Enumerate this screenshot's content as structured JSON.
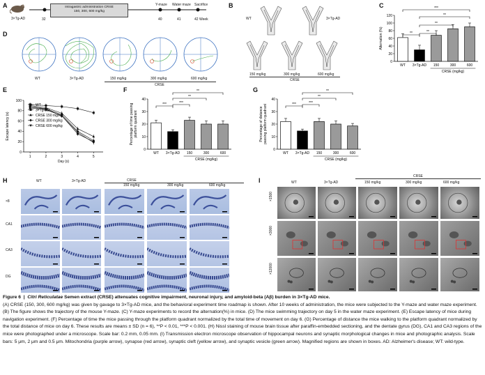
{
  "panelA": {
    "label": "A",
    "mouse": "3×Tg-AD",
    "start_week": "32",
    "box": [
      "Intragastric administration CRSE",
      "150, 300, 600 mg/kg"
    ],
    "events": [
      {
        "label": "Y-maze",
        "week": "40"
      },
      {
        "label": "Water maze",
        "week": "41"
      },
      {
        "label": "Sacrifice",
        "week": "42 Week"
      }
    ]
  },
  "panelB": {
    "label": "B",
    "wt": "WT",
    "tg": "3×Tg-AD",
    "doses": [
      "150 mg/kg",
      "300 mg/kg",
      "600 mg/kg"
    ],
    "group": "CRSE"
  },
  "panelC": {
    "label": "C",
    "group": "CRSE (mg/kg)",
    "sig": [
      "**",
      "**",
      "**",
      "**",
      "***"
    ]
  },
  "panelD": {
    "label": "D",
    "groups": [
      "WT",
      "3×Tg-AD",
      "150 mg/kg",
      "300 mg/kg",
      "600 mg/kg"
    ],
    "group": "CRSE"
  },
  "panelE": {
    "label": "E",
    "legend": [
      "WT",
      "3×Tg-AD",
      "CRSE 150 mg/kg",
      "CRSE 300 mg/kg",
      "CRSE 600 mg/kg"
    ]
  },
  "panelF": {
    "label": "F",
    "group": "CRSE (mg/kg)",
    "sig": [
      "***",
      "***",
      "**",
      "**"
    ]
  },
  "panelG": {
    "label": "G",
    "group": "CRSE (mg/kg)",
    "sig": [
      "***",
      "***",
      "**",
      "**"
    ]
  },
  "panelH": {
    "label": "H",
    "cols": [
      "WT",
      "3×Tg-AD",
      "150 mg/kg",
      "300 mg/kg",
      "600 mg/kg"
    ],
    "group": "CRSE",
    "rows": [
      "×8",
      "CA1",
      "CA3",
      "DG"
    ]
  },
  "panelI": {
    "label": "I",
    "cols": [
      "WT",
      "3×Tg-AD",
      "150 mg/kg",
      "300 mg/kg",
      "600 mg/kg"
    ],
    "group": "CRSE",
    "rows": [
      "×1500",
      "×3000",
      "×12000"
    ]
  },
  "chart_data": [
    {
      "id": "C",
      "type": "bar",
      "categories": [
        "WT",
        "3×Tg-AD",
        "150",
        "300",
        "600"
      ],
      "values": [
        62,
        30,
        68,
        85,
        90
      ],
      "errors": [
        10,
        12,
        12,
        11,
        10
      ],
      "ylabel": "Alternation (%)",
      "ylim": [
        0,
        120
      ],
      "yticks": [
        0,
        20,
        40,
        60,
        80,
        100,
        120
      ],
      "fills": [
        "#ffffff",
        "#000000",
        "#9a9a9a",
        "#9a9a9a",
        "#9a9a9a"
      ]
    },
    {
      "id": "E",
      "type": "line",
      "x": [
        1,
        2,
        3,
        4,
        5
      ],
      "xlabel": "Day (s)",
      "ylabel": "Escape latency (s)",
      "ylim": [
        0,
        100
      ],
      "yticks": [
        0,
        20,
        40,
        60,
        80,
        100
      ],
      "series": [
        {
          "name": "WT",
          "values": [
            85,
            82,
            70,
            35,
            20
          ]
        },
        {
          "name": "3×Tg-AD",
          "values": [
            92,
            90,
            88,
            84,
            76
          ]
        },
        {
          "name": "CRSE 150 mg/kg",
          "values": [
            90,
            86,
            75,
            45,
            30
          ]
        },
        {
          "name": "CRSE 300 mg/kg",
          "values": [
            88,
            84,
            72,
            40,
            22
          ]
        },
        {
          "name": "CRSE 600 mg/kg",
          "values": [
            87,
            83,
            70,
            38,
            18
          ]
        }
      ]
    },
    {
      "id": "F",
      "type": "bar",
      "categories": [
        "WT",
        "3×Tg-AD",
        "150",
        "300",
        "600"
      ],
      "values": [
        21,
        14,
        23,
        20,
        20
      ],
      "errors": [
        2,
        1.5,
        2.5,
        2.5,
        2.5
      ],
      "ylabel": "Percentage of time passing platform quadrant",
      "ylim": [
        0,
        40
      ],
      "yticks": [
        0,
        10,
        20,
        30,
        40
      ],
      "fills": [
        "#ffffff",
        "#000000",
        "#9a9a9a",
        "#9a9a9a",
        "#9a9a9a"
      ]
    },
    {
      "id": "G",
      "type": "bar",
      "categories": [
        "WT",
        "3×Tg-AD",
        "150",
        "300",
        "600"
      ],
      "values": [
        22,
        14.5,
        22,
        20,
        18.5
      ],
      "errors": [
        2.5,
        1.5,
        2.5,
        2.5,
        2
      ],
      "ylabel": "Percentage of distance passing platform quadrant",
      "ylim": [
        0,
        40
      ],
      "yticks": [
        0,
        10,
        20,
        30,
        40
      ],
      "fills": [
        "#ffffff",
        "#000000",
        "#9a9a9a",
        "#9a9a9a",
        "#9a9a9a"
      ]
    }
  ],
  "caption": {
    "label": "Figure 6",
    "sep": "|",
    "title_italic": "Citri Reticulatae",
    "title_rest": " Semen extract (CRSE) attenuates cognitive impairment, neuronal injury, and amyloid-beta (Aβ) burden in 3×Tg-AD mice.",
    "body": "(A) CRSE (150, 300, 600 mg/kg) was given by gavage to 3×Tg-AD mice, and the behavioral experiment time roadmap is shown. After 10 weeks of administration, the mice were subjected to the Y-maze and water maze experiment. (B) The figure shows the trajectory of the mouse Y-maze. (C) Y-maze experiments to record the alternation(%) in mice. (D) The mice swimming trajectory on day 5 in the water maze experiment. (E) Escape latency of mice during navigation experiment. (F) Percentage of time the mice passing through the platform quadrant normalized by the total time of movement on day 6. (G) Percentage of distance the mice walking to the platform quadrant normalized by the total distance of mice on day 6. These results are means ± SD (n = 6), **P < 0.01, ***P < 0.001. (H) Nissl staining of mouse brain tissue after paraffin-embedded sectioning, and the dentate gyrus (DG), CA1 and CA3 regions of the mice were photographed under a microscope. Scale bar: 0.2 mm, 0.05 mm. (I) Transmission electron microscope observation of hippocampal neurons and synaptic morphological changes in mice and photographic analysis. Scale bars: 5 μm, 2 μm and 0.5 μm. Mitochondria (purple arrow), synapse (red arrow), synaptic cleft (yellow arrow), and synaptic vesicle (green arrow). Magnified regions are shown in boxes. AD: Alzheimer's disease; WT: wild-type."
  }
}
